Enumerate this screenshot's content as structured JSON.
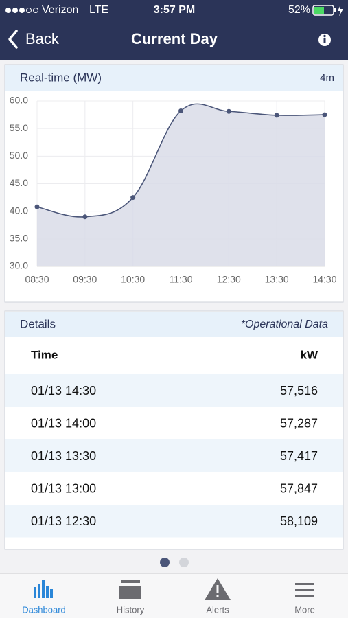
{
  "status_bar": {
    "carrier": "Verizon",
    "network": "LTE",
    "time": "3:57 PM",
    "battery": "52%"
  },
  "nav": {
    "back": "Back",
    "title": "Current Day"
  },
  "chart_card": {
    "title": "Real-time (MW)",
    "badge": "4m",
    "chart": {
      "type": "line",
      "categories": [
        "08:30",
        "09:30",
        "10:30",
        "11:30",
        "12:30",
        "13:30",
        "14:30"
      ],
      "values": [
        40.8,
        39.0,
        42.5,
        58.2,
        58.1,
        57.4,
        57.5
      ],
      "color": "#4b5679",
      "area_color": "#d9dce7",
      "ylim": [
        30,
        60
      ],
      "yticks": [
        {
          "value": 30,
          "label": "30.0"
        },
        {
          "value": 35,
          "label": "35.0"
        },
        {
          "value": 40,
          "label": "40.0"
        },
        {
          "value": 45,
          "label": "45.0"
        },
        {
          "value": 50,
          "label": "50.0"
        },
        {
          "value": 55,
          "label": "55.0"
        },
        {
          "value": 60,
          "label": "60.0"
        }
      ],
      "grid": true
    }
  },
  "details": {
    "title": "Details",
    "note": "*Operational Data",
    "columns": [
      "Time",
      "kW"
    ],
    "rows": [
      [
        "01/13 14:30",
        "57,516"
      ],
      [
        "01/13 14:00",
        "57,287"
      ],
      [
        "01/13 13:30",
        "57,417"
      ],
      [
        "01/13 13:00",
        "57,847"
      ],
      [
        "01/13 12:30",
        "58,109"
      ]
    ]
  },
  "tabs": [
    "Dashboard",
    "History",
    "Alerts",
    "More"
  ]
}
